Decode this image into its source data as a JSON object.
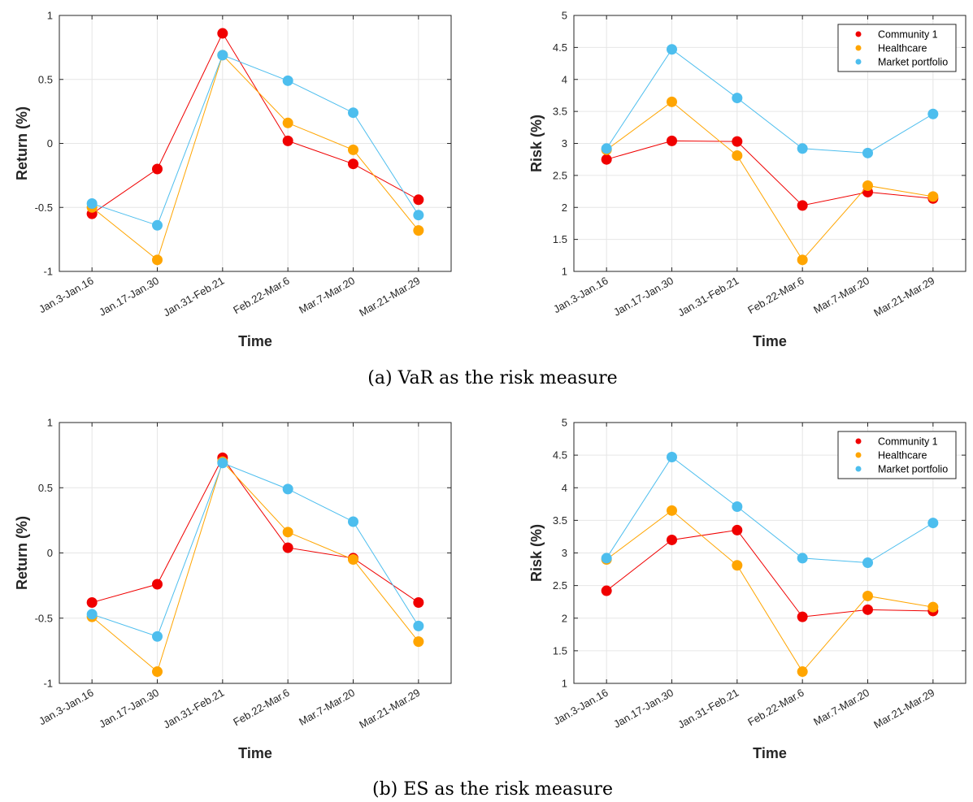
{
  "colors": {
    "Community 1": "#f00000",
    "Healthcare": "#ffa500",
    "Market portfolio": "#4dbeee"
  },
  "captions": [
    "(a) VaR as the risk measure",
    "(b) ES as the risk measure"
  ],
  "chart_data": [
    {
      "type": "line",
      "categories": [
        "Jan.3-Jan.16",
        "Jan.17-Jan.30",
        "Jan.31-Feb.21",
        "Feb.22-Mar.6",
        "Mar.7-Mar.20",
        "Mar.21-Mar.29"
      ],
      "xlabel": "Time",
      "ylabel": "Return (%)",
      "ylim": [
        -1,
        1
      ],
      "yticks": [
        "-1",
        "-0.5",
        "0",
        "0.5",
        "1"
      ],
      "grid": true,
      "series": [
        {
          "key": "Community 1",
          "values": [
            -0.55,
            -0.2,
            0.86,
            0.02,
            -0.16,
            -0.44
          ]
        },
        {
          "key": "Healthcare",
          "values": [
            -0.5,
            -0.91,
            0.69,
            0.16,
            -0.05,
            -0.68
          ]
        },
        {
          "key": "Market portfolio",
          "values": [
            -0.47,
            -0.64,
            0.69,
            0.49,
            0.24,
            -0.56
          ]
        }
      ]
    },
    {
      "type": "line",
      "categories": [
        "Jan.3-Jan.16",
        "Jan.17-Jan.30",
        "Jan.31-Feb.21",
        "Feb.22-Mar.6",
        "Mar.7-Mar.20",
        "Mar.21-Mar.29"
      ],
      "xlabel": "Time",
      "ylabel": "Risk (%)",
      "ylim": [
        1,
        5
      ],
      "yticks": [
        "1",
        "1.5",
        "2",
        "2.5",
        "3",
        "3.5",
        "4",
        "4.5",
        "5"
      ],
      "grid": true,
      "legend": {
        "placement": "top-right",
        "entries": [
          "Community 1",
          "Healthcare",
          "Market portfolio"
        ]
      },
      "series": [
        {
          "name": "Community 1",
          "values": [
            2.75,
            3.04,
            3.03,
            2.03,
            2.24,
            2.14
          ]
        },
        {
          "name": "Healthcare",
          "values": [
            2.9,
            3.65,
            2.81,
            1.18,
            2.34,
            2.17
          ]
        },
        {
          "name": "Market portfolio",
          "values": [
            2.92,
            4.47,
            3.71,
            2.92,
            2.85,
            3.46
          ]
        }
      ]
    },
    {
      "type": "line",
      "categories": [
        "Jan.3-Jan.16",
        "Jan.17-Jan.30",
        "Jan.31-Feb.21",
        "Feb.22-Mar.6",
        "Mar.7-Mar.20",
        "Mar.21-Mar.29"
      ],
      "xlabel": "Time",
      "ylabel": "Return (%)",
      "ylim": [
        -1,
        1
      ],
      "yticks": [
        "-1",
        "-0.5",
        "0",
        "0.5",
        "1"
      ],
      "grid": true,
      "series": [
        {
          "key": "Community 1",
          "values": [
            -0.38,
            -0.24,
            0.73,
            0.04,
            -0.04,
            -0.38
          ]
        },
        {
          "key": "Healthcare",
          "values": [
            -0.49,
            -0.91,
            0.7,
            0.16,
            -0.05,
            -0.68
          ]
        },
        {
          "key": "Market portfolio",
          "values": [
            -0.47,
            -0.64,
            0.69,
            0.49,
            0.24,
            -0.56
          ]
        }
      ]
    },
    {
      "type": "line",
      "categories": [
        "Jan.3-Jan.16",
        "Jan.17-Jan.30",
        "Jan.31-Feb.21",
        "Feb.22-Mar.6",
        "Mar.7-Mar.20",
        "Mar.21-Mar.29"
      ],
      "xlabel": "Time",
      "ylabel": "Risk (%)",
      "ylim": [
        1,
        5
      ],
      "yticks": [
        "1",
        "1.5",
        "2",
        "2.5",
        "3",
        "3.5",
        "4",
        "4.5",
        "5"
      ],
      "grid": true,
      "legend": {
        "placement": "top-right",
        "entries": [
          "Community 1",
          "Healthcare",
          "Market portfolio"
        ]
      },
      "series": [
        {
          "name": "Community 1",
          "values": [
            2.42,
            3.2,
            3.35,
            2.02,
            2.13,
            2.11
          ]
        },
        {
          "name": "Healthcare",
          "values": [
            2.9,
            3.65,
            2.81,
            1.18,
            2.34,
            2.17
          ]
        },
        {
          "name": "Market portfolio",
          "values": [
            2.92,
            4.47,
            3.71,
            2.92,
            2.85,
            3.46
          ]
        }
      ]
    }
  ]
}
